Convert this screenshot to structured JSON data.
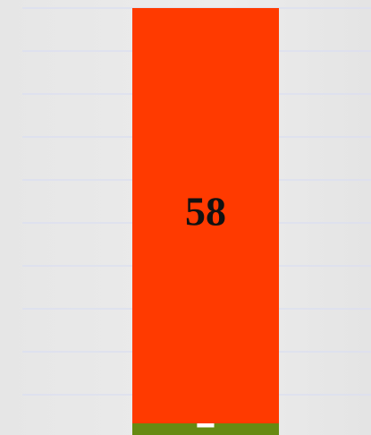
{
  "chart_data": {
    "type": "stacked_bar",
    "series": [
      {
        "color": "#668a12",
        "values": [
          2
        ]
      },
      {
        "color": "#ff3a00",
        "values": [
          58
        ]
      }
    ],
    "ylim": [
      0,
      60
    ],
    "yticks": [
      6,
      12,
      18,
      24,
      30,
      36,
      42,
      48,
      54,
      60
    ],
    "grid": true
  }
}
